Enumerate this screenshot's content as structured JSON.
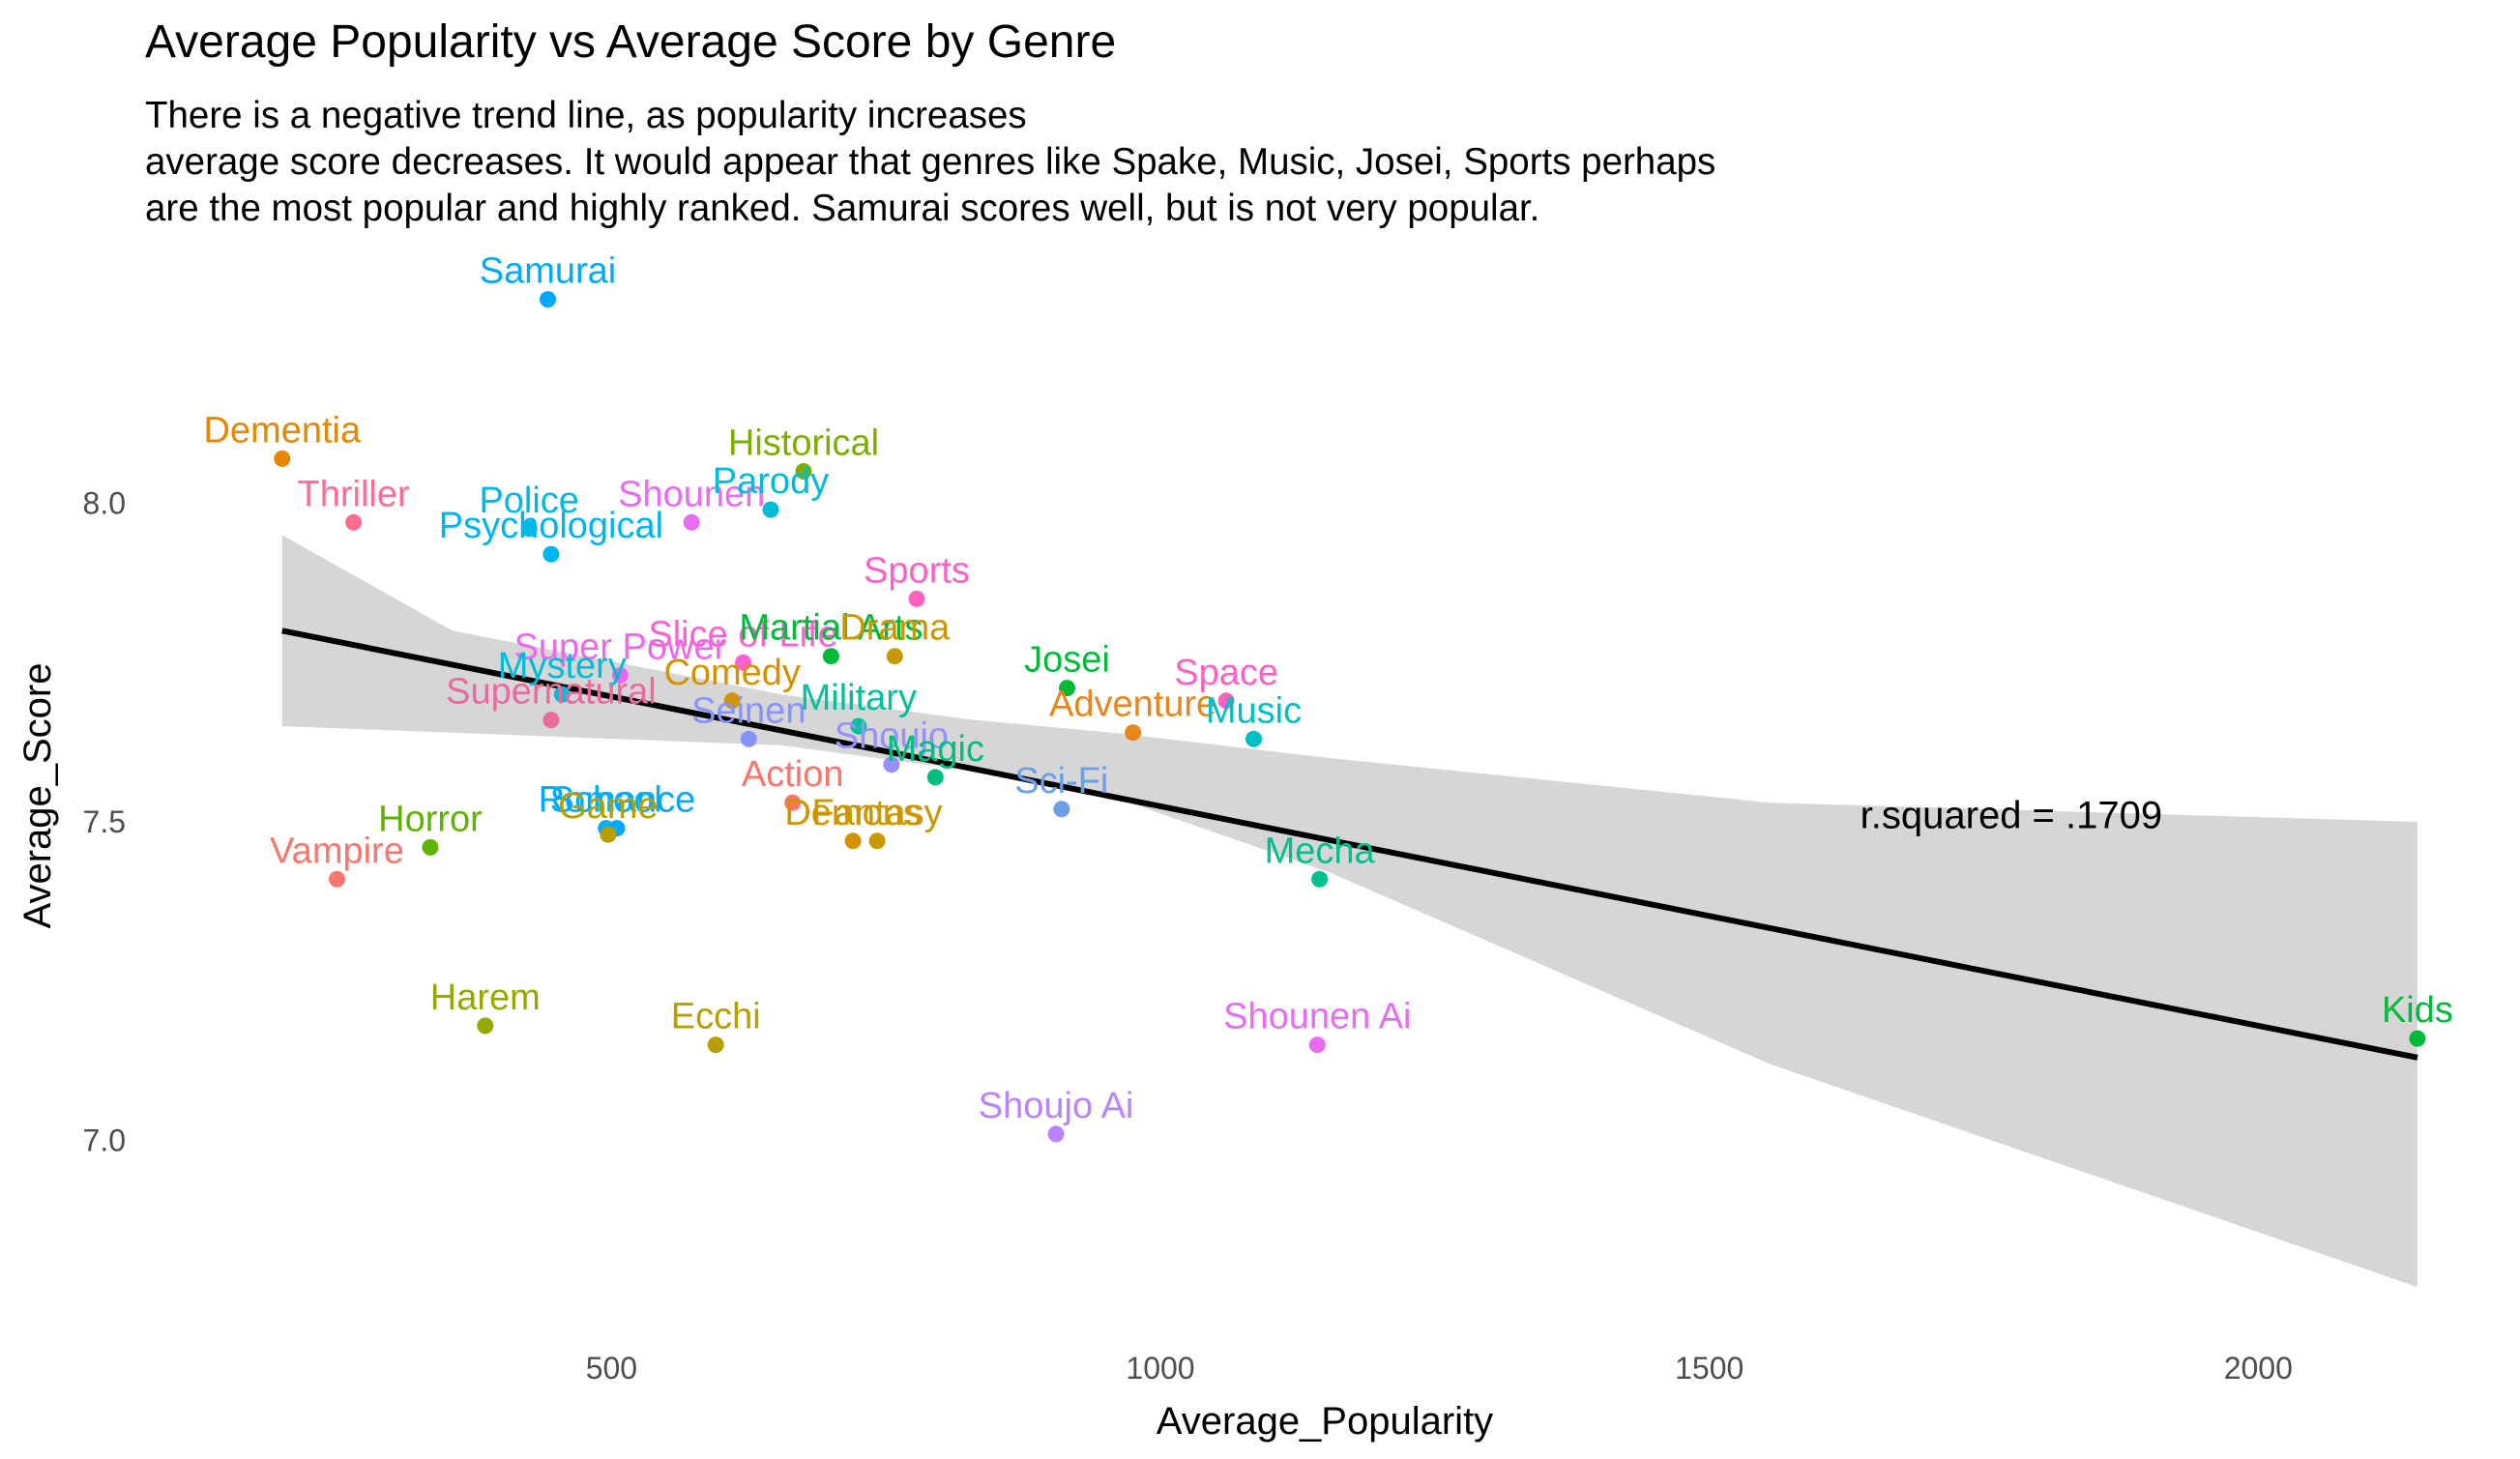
{
  "chart_data": {
    "type": "scatter",
    "title": "Average Popularity vs Average Score by Genre",
    "subtitle_lines": [
      "There is a negative trend line, as popularity increases",
      "average score decreases. It would appear that genres like Spake, Music, Josei, Sports perhaps",
      "are the most popular and highly ranked. Samurai scores well, but is not very popular."
    ],
    "xlabel": "Average_Popularity",
    "ylabel": "Average_Score",
    "xlim": [
      60,
      2170
    ],
    "ylim": [
      6.7,
      8.5
    ],
    "x_ticks": [
      500,
      1000,
      1500,
      2000
    ],
    "y_ticks": [
      7.0,
      7.5,
      8.0
    ],
    "x_tick_labels": [
      "500",
      "1000",
      "1500",
      "2000"
    ],
    "y_tick_labels": [
      "7.0",
      "7.5",
      "8.0"
    ],
    "grid": false,
    "annotation": "r.squared = .1709",
    "annotation_position": {
      "x": 1775,
      "y": 7.49
    },
    "trend_line": {
      "x": [
        200,
        2145
      ],
      "y": [
        7.8,
        7.13
      ],
      "band_x": [
        200,
        355,
        655,
        830,
        955,
        1155,
        1555,
        2145
      ],
      "band_upper": [
        7.95,
        7.8,
        7.7,
        7.66,
        7.64,
        7.6,
        7.53,
        7.5
      ],
      "band_lower": [
        7.65,
        7.64,
        7.62,
        7.58,
        7.54,
        7.42,
        7.12,
        6.77
      ],
      "color": "#000000",
      "band_color": "#d6d6d6"
    },
    "points": [
      {
        "label": "Samurai",
        "x": 442,
        "y": 8.32,
        "color": "#00A9FF"
      },
      {
        "label": "Dementia",
        "x": 200,
        "y": 8.07,
        "color": "#E58700"
      },
      {
        "label": "Thriller",
        "x": 265,
        "y": 7.97,
        "color": "#FF6C91"
      },
      {
        "label": "Police",
        "x": 425,
        "y": 7.96,
        "color": "#00B8E7"
      },
      {
        "label": "Psychological",
        "x": 445,
        "y": 7.92,
        "color": "#00B4F0"
      },
      {
        "label": "Shounen",
        "x": 573,
        "y": 7.97,
        "color": "#E76BF3"
      },
      {
        "label": "Historical",
        "x": 675,
        "y": 8.05,
        "color": "#7CAE00"
      },
      {
        "label": "Parody",
        "x": 645,
        "y": 7.99,
        "color": "#00BCD8"
      },
      {
        "label": "Sports",
        "x": 778,
        "y": 7.85,
        "color": "#FF61C3"
      },
      {
        "label": "Slice of Life",
        "x": 620,
        "y": 7.75,
        "color": "#FD61D1"
      },
      {
        "label": "Martial Arts",
        "x": 700,
        "y": 7.76,
        "color": "#00BA38"
      },
      {
        "label": "Drama",
        "x": 758,
        "y": 7.76,
        "color": "#C99800"
      },
      {
        "label": "Super Power",
        "x": 508,
        "y": 7.73,
        "color": "#EF67EB"
      },
      {
        "label": "Mystery",
        "x": 455,
        "y": 7.7,
        "color": "#00BCD8"
      },
      {
        "label": "Comedy",
        "x": 610,
        "y": 7.69,
        "color": "#D39200"
      },
      {
        "label": "Supernatural",
        "x": 445,
        "y": 7.66,
        "color": "#EA6A9E"
      },
      {
        "label": "Seinen",
        "x": 625,
        "y": 7.63,
        "color": "#8494FF"
      },
      {
        "label": "Military",
        "x": 725,
        "y": 7.65,
        "color": "#00C19A"
      },
      {
        "label": "Shoujo",
        "x": 755,
        "y": 7.59,
        "color": "#9590FF"
      },
      {
        "label": "Magic",
        "x": 795,
        "y": 7.57,
        "color": "#00BF7D"
      },
      {
        "label": "Josei",
        "x": 915,
        "y": 7.71,
        "color": "#00BA38"
      },
      {
        "label": "Space",
        "x": 1060,
        "y": 7.69,
        "color": "#FF61C3"
      },
      {
        "label": "Adventure",
        "x": 975,
        "y": 7.64,
        "color": "#E7861B"
      },
      {
        "label": "Music",
        "x": 1085,
        "y": 7.63,
        "color": "#00BFC4"
      },
      {
        "label": "Sci-Fi",
        "x": 910,
        "y": 7.52,
        "color": "#6D9FE8"
      },
      {
        "label": "Action",
        "x": 665,
        "y": 7.53,
        "color": "#F8766D"
      },
      {
        "label": "Demons",
        "x": 720,
        "y": 7.47,
        "color": "#D39200"
      },
      {
        "label": "Fantasy",
        "x": 742,
        "y": 7.47,
        "color": "#C99800"
      },
      {
        "label": "School",
        "x": 495,
        "y": 7.49,
        "color": "#00B0F6"
      },
      {
        "label": "Romance",
        "x": 505,
        "y": 7.49,
        "color": "#00A9FF"
      },
      {
        "label": "Game",
        "x": 497,
        "y": 7.48,
        "color": "#B79F00"
      },
      {
        "label": "Horror",
        "x": 335,
        "y": 7.46,
        "color": "#5EB300"
      },
      {
        "label": "Vampire",
        "x": 250,
        "y": 7.41,
        "color": "#F8766D"
      },
      {
        "label": "Mecha",
        "x": 1145,
        "y": 7.41,
        "color": "#00C08B"
      },
      {
        "label": "Harem",
        "x": 385,
        "y": 7.18,
        "color": "#95A900"
      },
      {
        "label": "Ecchi",
        "x": 595,
        "y": 7.15,
        "color": "#B79F00"
      },
      {
        "label": "Shounen Ai",
        "x": 1143,
        "y": 7.15,
        "color": "#E76BF3"
      },
      {
        "label": "Shoujo Ai",
        "x": 905,
        "y": 7.01,
        "color": "#B983FF"
      },
      {
        "label": "Kids",
        "x": 2145,
        "y": 7.16,
        "color": "#00BA38"
      }
    ]
  }
}
